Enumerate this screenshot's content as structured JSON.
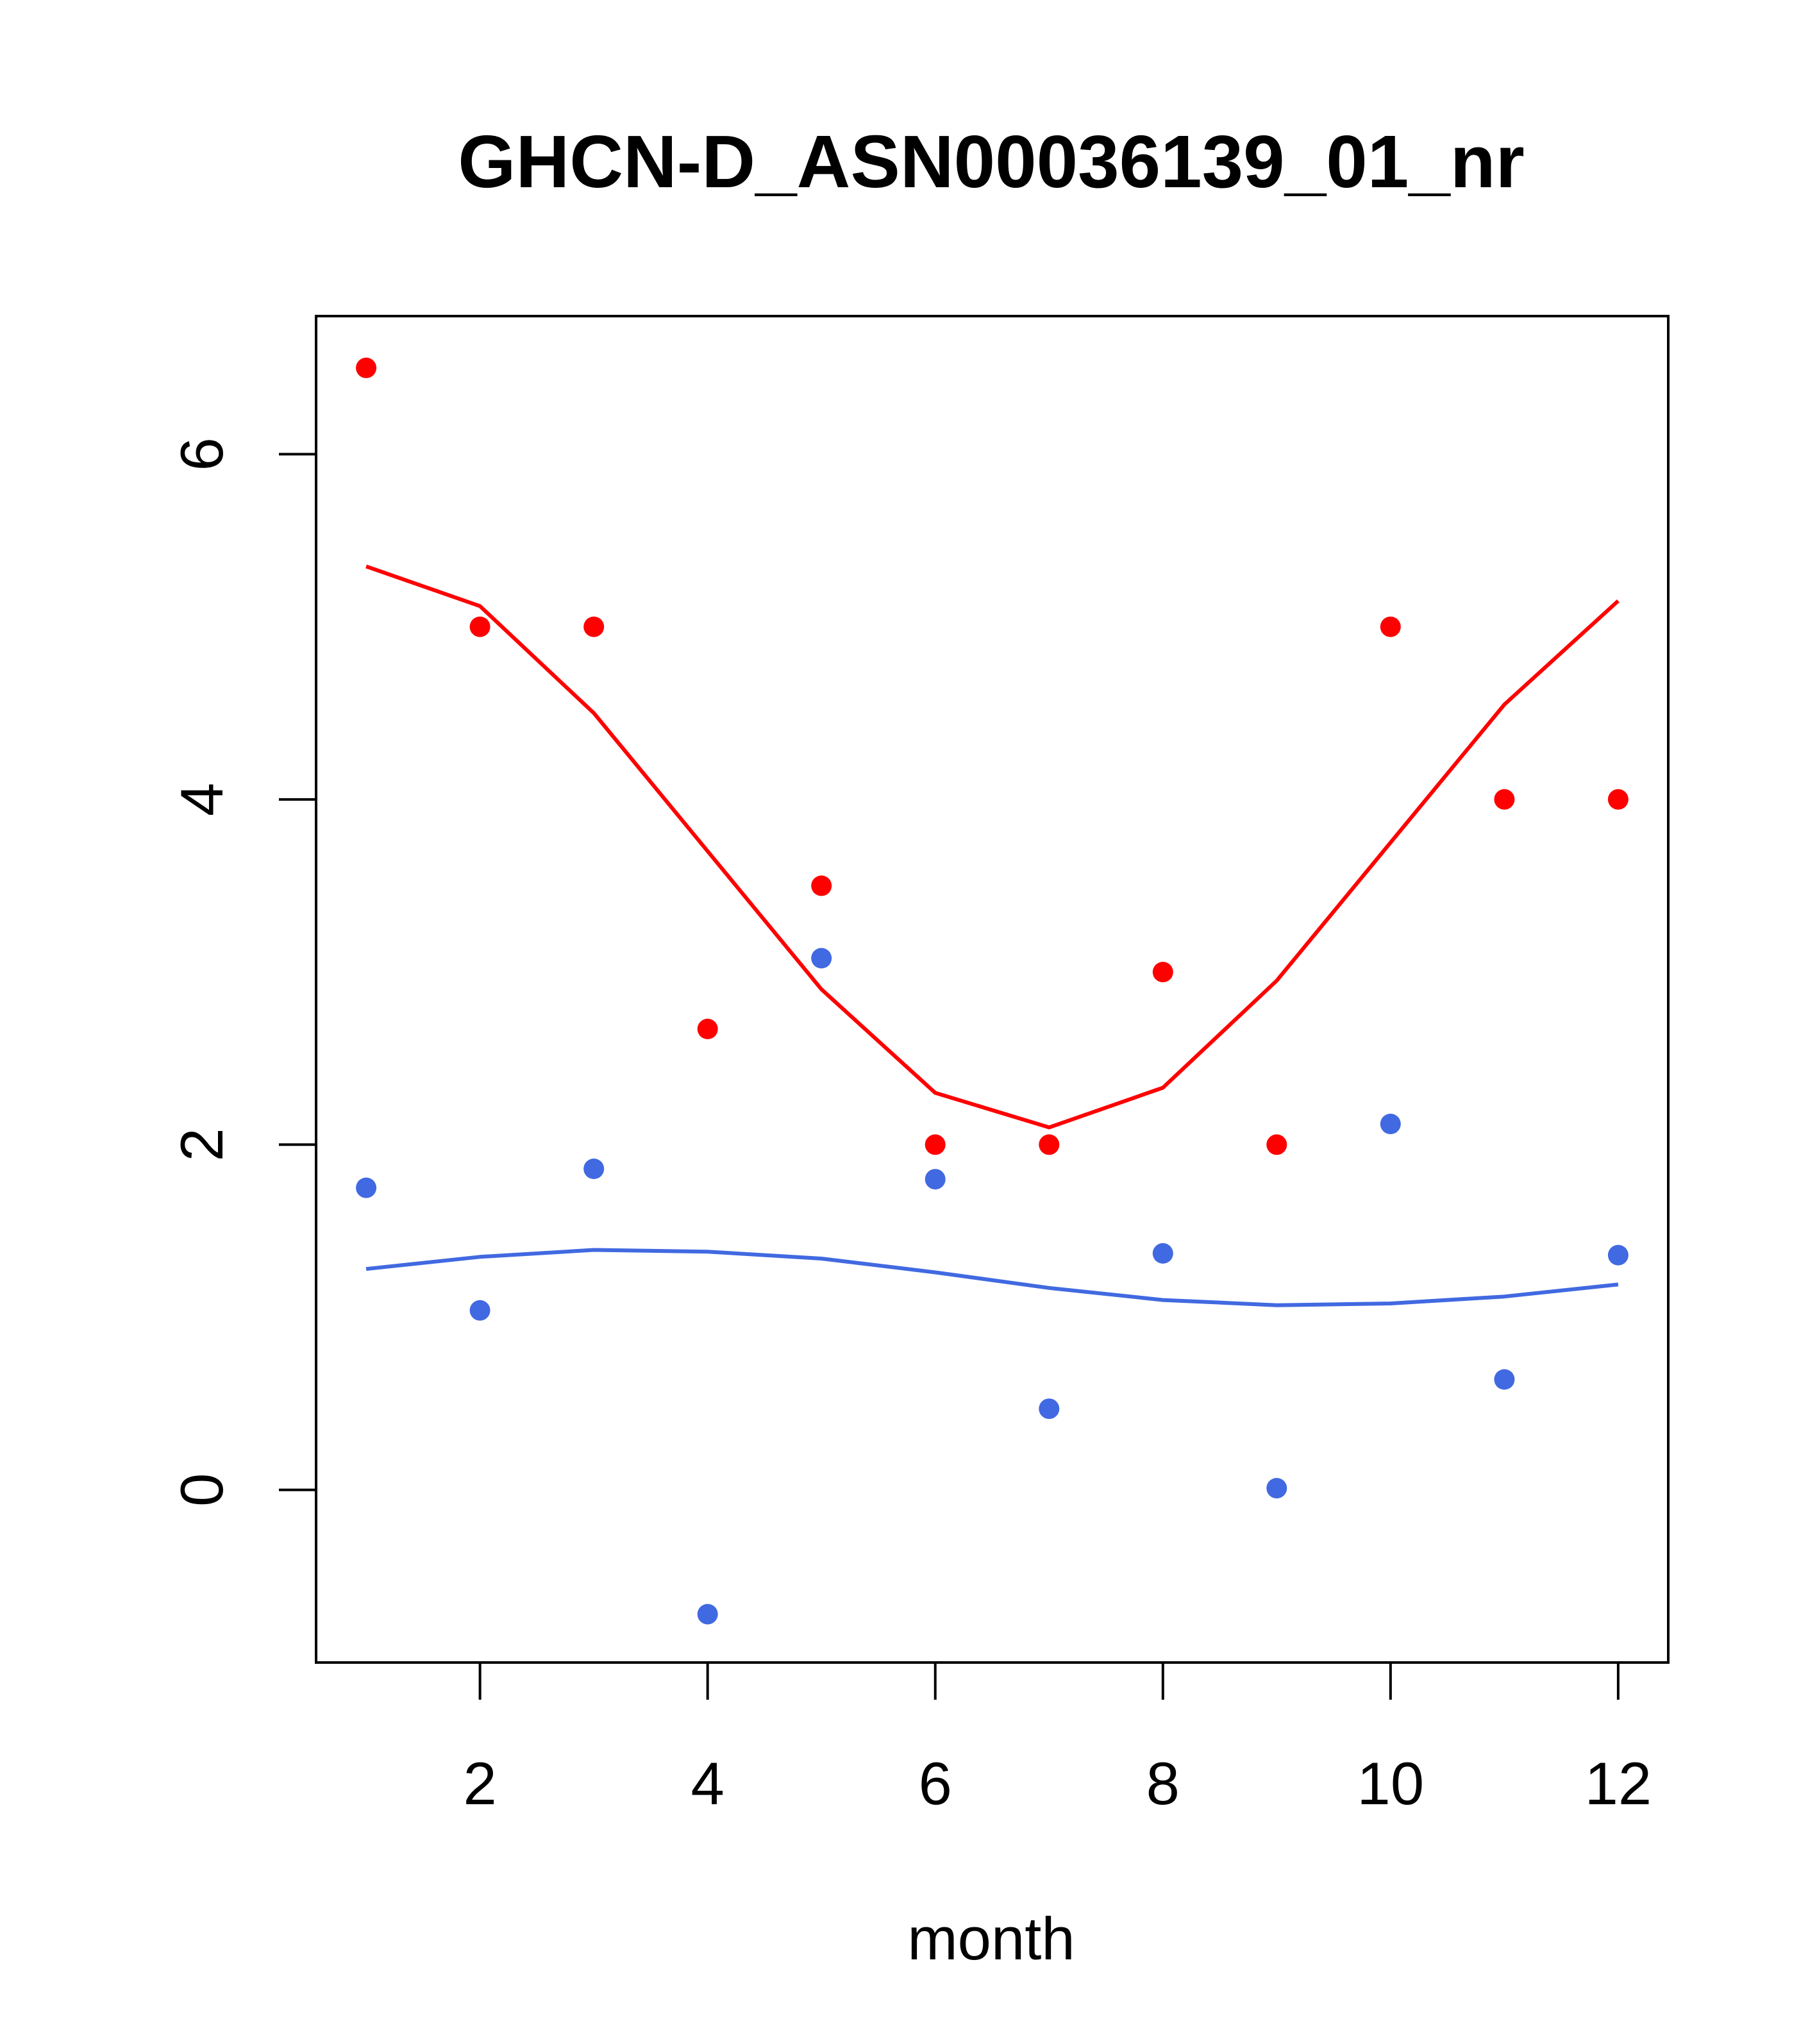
{
  "chart_data": {
    "type": "scatter",
    "title": "GHCN-D_ASN00036139_01_nr",
    "xlabel": "month",
    "ylabel": "",
    "xlim": [
      0.56,
      12.44
    ],
    "ylim": [
      -1.0,
      6.8
    ],
    "x_ticks": [
      2,
      4,
      6,
      8,
      10,
      12
    ],
    "y_ticks": [
      0,
      2,
      4,
      6
    ],
    "grid": false,
    "legend": "none",
    "series": [
      {
        "color": "#ff0000",
        "points": {
          "x": [
            1,
            2,
            3,
            4,
            5,
            6,
            7,
            8,
            9,
            10,
            11,
            12
          ],
          "y": [
            6.5,
            5.0,
            5.0,
            2.67,
            3.5,
            2.0,
            2.0,
            3.0,
            2.0,
            5.0,
            4.0,
            4.0
          ]
        },
        "line": {
          "x": [
            1,
            2,
            3,
            4,
            5,
            6,
            7,
            8,
            9,
            10,
            11,
            12
          ],
          "y": [
            5.35,
            5.12,
            4.5,
            3.7,
            2.9,
            2.3,
            2.1,
            2.33,
            2.95,
            3.75,
            4.55,
            5.15
          ]
        }
      },
      {
        "color": "#4169e1",
        "points": {
          "x": [
            1,
            2,
            3,
            4,
            5,
            6,
            7,
            8,
            9,
            10,
            11,
            12
          ],
          "y": [
            1.75,
            1.04,
            1.86,
            -0.72,
            3.08,
            1.8,
            0.47,
            1.37,
            0.01,
            2.12,
            0.64,
            1.36
          ]
        },
        "line": {
          "x": [
            1,
            2,
            3,
            4,
            5,
            6,
            7,
            8,
            9,
            10,
            11,
            12
          ],
          "y": [
            1.28,
            1.35,
            1.39,
            1.38,
            1.34,
            1.26,
            1.17,
            1.1,
            1.07,
            1.08,
            1.12,
            1.19
          ]
        }
      }
    ]
  }
}
